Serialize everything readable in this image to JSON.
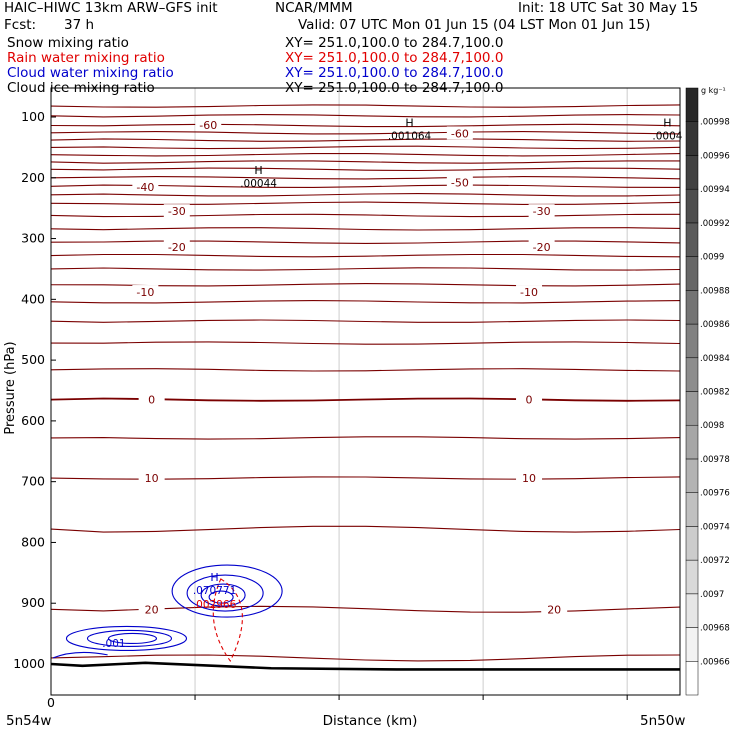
{
  "header": {
    "title": "HAIC–HIWC 13km ARW–GFS init",
    "org": "NCAR/MMM",
    "init": "Init: 18 UTC Sat 30 May 15",
    "fcst_label": "Fcst:",
    "fcst_value": "37 h",
    "valid": "Valid: 07 UTC Mon 01 Jun 15 (04 LST Mon 01 Jun 15)"
  },
  "fields": [
    {
      "name": "Snow mixing ratio",
      "xy": "XY= 251.0,100.0 to 284.7,100.0",
      "color": "#000000"
    },
    {
      "name": "Rain water mixing ratio",
      "xy": "XY= 251.0,100.0 to 284.7,100.0",
      "color": "#e00000"
    },
    {
      "name": "Cloud water mixing ratio",
      "xy": "XY= 251.0,100.0 to 284.7,100.0",
      "color": "#0000cc"
    },
    {
      "name": "Cloud ice mixing ratio",
      "xy": "XY= 251.0,100.0 to 284.7,100.0",
      "color": "#000000"
    }
  ],
  "chart_data": {
    "type": "contour",
    "ylabel": "Pressure (hPa)",
    "xlabel": "Distance (km)",
    "ylim": [
      1050,
      70
    ],
    "y_ticks": [
      100,
      200,
      300,
      400,
      500,
      600,
      700,
      800,
      900,
      1000
    ],
    "x_ticks": [
      "0"
    ],
    "x_endpoints": [
      "5n54w",
      "5n50w"
    ],
    "temperature_contours": {
      "color": "#7a0000",
      "levels_labeled": [
        {
          "label": "-60",
          "positions": [
            [
              0.25,
              113
            ],
            [
              0.65,
              127
            ]
          ]
        },
        {
          "label": "-50",
          "positions": [
            [
              0.65,
              208
            ]
          ]
        },
        {
          "label": "-40",
          "positions": [
            [
              0.15,
              215
            ]
          ]
        },
        {
          "label": "-30",
          "positions": [
            [
              0.2,
              255
            ],
            [
              0.78,
              255
            ]
          ]
        },
        {
          "label": "-20",
          "positions": [
            [
              0.2,
              314
            ],
            [
              0.78,
              314
            ]
          ]
        },
        {
          "label": "-10",
          "positions": [
            [
              0.15,
              388
            ],
            [
              0.76,
              388
            ]
          ]
        },
        {
          "label": "0",
          "positions": [
            [
              0.16,
              565
            ],
            [
              0.76,
              565
            ]
          ]
        },
        {
          "label": "10",
          "positions": [
            [
              0.16,
              694
            ],
            [
              0.76,
              694
            ]
          ]
        },
        {
          "label": "20",
          "positions": [
            [
              0.16,
              910
            ],
            [
              0.8,
              910
            ]
          ]
        }
      ],
      "line_pressures": [
        82,
        98,
        114,
        126,
        138,
        150,
        162,
        174,
        186,
        200,
        214,
        228,
        242,
        262,
        284,
        306,
        328,
        350,
        376,
        404,
        436,
        472,
        516,
        565,
        628,
        694,
        778,
        910,
        990
      ]
    },
    "maxima_labels": [
      {
        "symbol": "H",
        "value": ".001064",
        "pos": [
          0.57,
          122
        ]
      },
      {
        "symbol": "H",
        "value": ".0004",
        "pos": [
          0.98,
          122
        ]
      },
      {
        "symbol": "H",
        "value": ".00044",
        "pos": [
          0.33,
          200
        ]
      },
      {
        "symbol": "H",
        "value": ".070771",
        "pos": [
          0.26,
          870
        ],
        "color": "#0000cc"
      },
      {
        "symbol": "",
        "value": ".002966",
        "pos": [
          0.26,
          893
        ],
        "color": "#e00000"
      },
      {
        "symbol": "",
        "value": ".001",
        "pos": [
          0.1,
          957
        ],
        "color": "#0000cc"
      }
    ],
    "colorbar": {
      "unit": "g kg⁻¹",
      "labels": [
        ".00966",
        ".00968",
        ".0097",
        ".00972",
        ".00974",
        ".00976",
        ".00978",
        ".0098",
        ".00982",
        ".00984",
        ".00986",
        ".00988",
        ".0099",
        ".00992",
        ".00994",
        ".00996",
        ".00998"
      ]
    }
  }
}
